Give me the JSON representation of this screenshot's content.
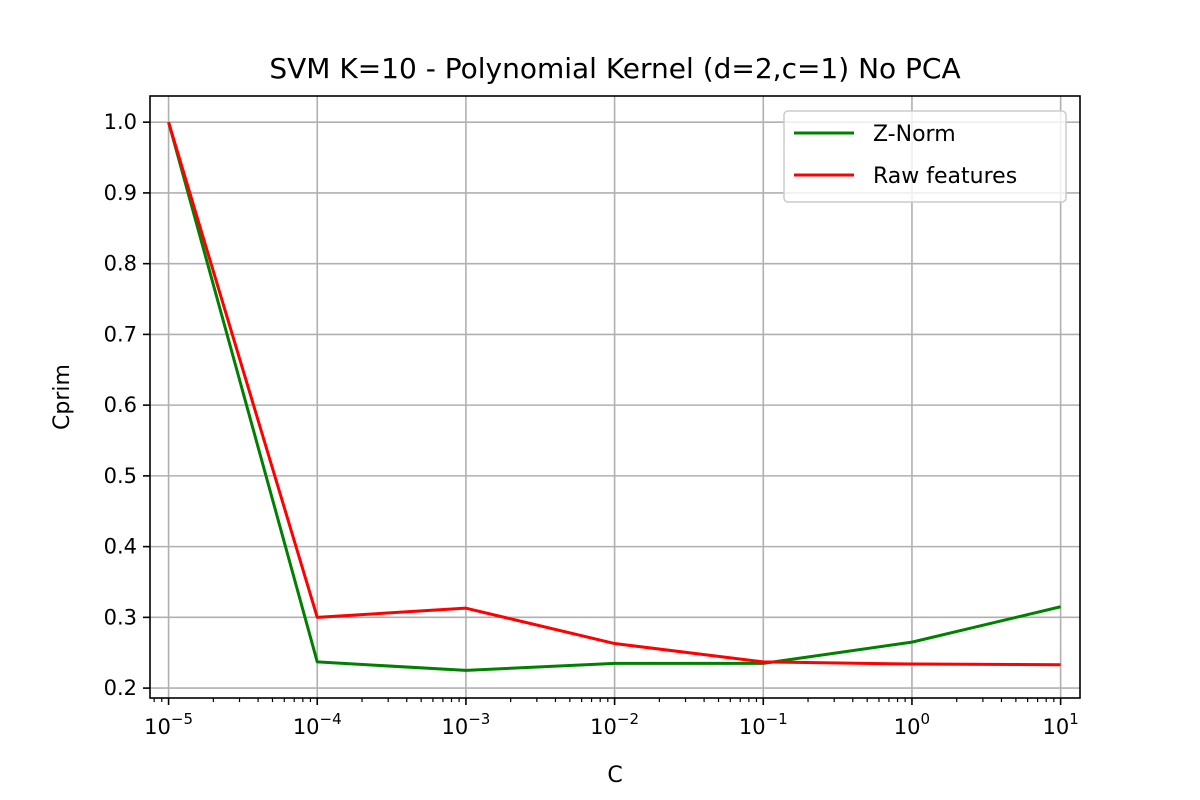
{
  "chart_data": {
    "type": "line",
    "title": "SVM K=10 - Polynomial Kernel (d=2,c=1) No PCA",
    "xlabel": "C",
    "ylabel": "Cprim",
    "xscale": "log",
    "xlim": [
      7.5e-06,
      13.5
    ],
    "ylim": [
      0.186,
      1.037
    ],
    "xticks": [
      1e-05,
      0.0001,
      0.001,
      0.01,
      0.1,
      1,
      10
    ],
    "xtick_labels": [
      {
        "base": "10",
        "exp": "−5"
      },
      {
        "base": "10",
        "exp": "−4"
      },
      {
        "base": "10",
        "exp": "−3"
      },
      {
        "base": "10",
        "exp": "−2"
      },
      {
        "base": "10",
        "exp": "−1"
      },
      {
        "base": "10",
        "exp": "0"
      },
      {
        "base": "10",
        "exp": "1"
      }
    ],
    "yticks": [
      0.2,
      0.3,
      0.4,
      0.5,
      0.6,
      0.7,
      0.8,
      0.9,
      1.0
    ],
    "ytick_labels": [
      "0.2",
      "0.3",
      "0.4",
      "0.5",
      "0.6",
      "0.7",
      "0.8",
      "0.9",
      "1.0"
    ],
    "grid": true,
    "legend_position": "top-right",
    "x": [
      1e-05,
      0.0001,
      0.001,
      0.01,
      0.1,
      1,
      10
    ],
    "series": [
      {
        "name": "Z-Norm",
        "color": "#008000",
        "values": [
          1.0,
          0.237,
          0.225,
          0.235,
          0.235,
          0.265,
          0.315
        ]
      },
      {
        "name": "Raw features",
        "color": "#ff0000",
        "values": [
          1.0,
          0.3,
          0.313,
          0.263,
          0.237,
          0.234,
          0.233
        ]
      }
    ]
  }
}
